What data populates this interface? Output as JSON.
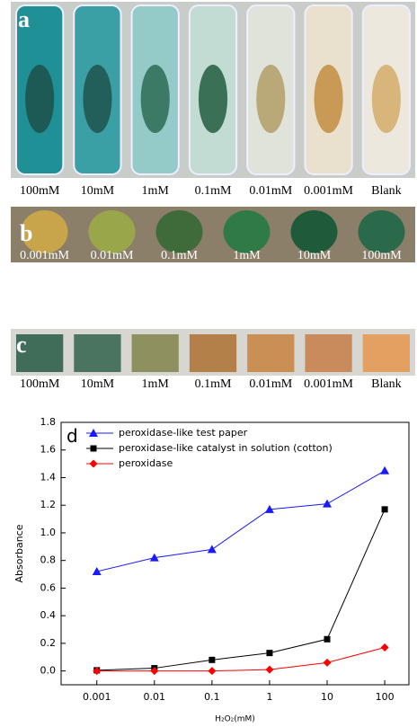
{
  "panels": {
    "a": {
      "label": "a",
      "captions": [
        "100mM",
        "10mM",
        "1mM",
        "0.1mM",
        "0.01mM",
        "0.001mM",
        "Blank"
      ]
    },
    "b": {
      "label": "b",
      "captions": [
        "0.001mM",
        "0.01mM",
        "0.1mM",
        "1mM",
        "10mM",
        "100mM"
      ]
    },
    "c": {
      "label": "c",
      "captions": [
        "100mM",
        "10mM",
        "1mM",
        "0.1mM",
        "0.01mM",
        "0.001mM",
        "Blank"
      ]
    }
  },
  "chart_data": {
    "type": "line",
    "panel_label": "d",
    "x_label": "H₂O₂(mM)",
    "y_label": "Absorbance",
    "x": [
      0.001,
      0.01,
      0.1,
      1,
      10,
      100
    ],
    "xscale": "log",
    "xlim": [
      0.00024,
      263
    ],
    "xticks": [
      0.001,
      0.01,
      0.1,
      1,
      10,
      100
    ],
    "ylim": [
      -0.1,
      1.8
    ],
    "yticks": [
      {
        "value": 0,
        "label": "0.0"
      },
      {
        "value": 0.2,
        "label": "0.2"
      },
      {
        "value": 0.4,
        "label": "0.4"
      },
      {
        "value": 0.6,
        "label": "0.6"
      },
      {
        "value": 0.8,
        "label": "0.8"
      },
      {
        "value": 1,
        "label": "1.0"
      },
      {
        "value": 1.2,
        "label": "1.2"
      },
      {
        "value": 1.4,
        "label": "1.4"
      },
      {
        "value": 1.6,
        "label": "1.6"
      },
      {
        "value": 1.8,
        "label": "1.8"
      }
    ],
    "legend": "upper left",
    "series": [
      {
        "name": "peroxidase-like test paper",
        "color": "#1a1aff",
        "marker": "triangle",
        "values": [
          0.72,
          0.82,
          0.88,
          1.17,
          1.21,
          1.45
        ]
      },
      {
        "name": "peroxidase-like catalyst in solution (cotton)",
        "color": "#000000",
        "marker": "square",
        "values": [
          0.005,
          0.02,
          0.08,
          0.13,
          0.23,
          1.17
        ]
      },
      {
        "name": "peroxidase",
        "color": "#ff0000",
        "marker": "diamond",
        "values": [
          0,
          0,
          0,
          0.01,
          0.06,
          0.17
        ]
      }
    ]
  }
}
